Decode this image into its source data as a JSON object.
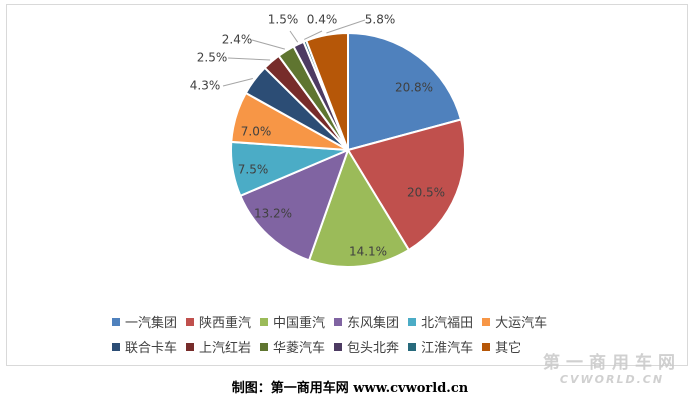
{
  "chart_data": {
    "type": "pie",
    "categories": [
      "一汽集团",
      "陕西重汽",
      "中国重汽",
      "东风集团",
      "北汽福田",
      "大运汽车",
      "联合卡车",
      "上汽红岩",
      "华菱汽车",
      "包头北奔",
      "江淮汽车",
      "其它"
    ],
    "values": [
      20.8,
      20.5,
      14.1,
      13.2,
      7.5,
      7.0,
      4.3,
      2.5,
      2.4,
      1.5,
      0.4,
      5.8
    ],
    "value_labels": [
      "20.8%",
      "20.5%",
      "14.1%",
      "13.2%",
      "7.5%",
      "7.0%",
      "4.3%",
      "2.5%",
      "2.4%",
      "1.5%",
      "0.4%",
      "5.8%"
    ],
    "colors": [
      "#4F81BD",
      "#C0504D",
      "#9BBB59",
      "#8064A2",
      "#4BACC6",
      "#F79646",
      "#2C4D75",
      "#772C2A",
      "#5F7530",
      "#4D3B62",
      "#276A7C",
      "#B65708"
    ],
    "legend_position": "bottom"
  },
  "caption": "制图：第一商用车网 www.cvworld.cn",
  "watermark": {
    "cn": "第一商用车网",
    "en": "CVWORLD.CN"
  }
}
